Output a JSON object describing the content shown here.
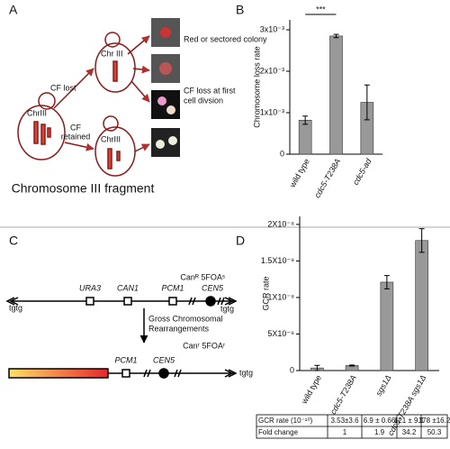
{
  "panel_labels": [
    "A",
    "B",
    "C",
    "D"
  ],
  "panel_a": {
    "chrIII_left": "ChrIII",
    "cf_lost": "CF lost",
    "cf_retained": [
      "CF",
      "retained"
    ],
    "chrIII_top": "Chr III",
    "chrIII_bottom": "ChrIII",
    "red_colony": "Red or sectored colony",
    "cf_loss_first": [
      "CF loss at first",
      "cell divsion"
    ],
    "fragment": "Chromosome III fragment"
  },
  "panel_c": {
    "tgtg_left": "tgtg",
    "ura3": "URA3",
    "can1": "CAN1",
    "pcm1": "PCM1",
    "cen5": "CEN5",
    "tgtg_right": "tgtg",
    "phenotype_top": "Canᴿ 5FOAˢ",
    "gcr": [
      "Gross Chromosomal",
      "Rearrangements"
    ],
    "phenotype_bottom": "Canʳ 5FOAʳ",
    "pcm1_b": "PCM1",
    "cen5_b": "CEN5",
    "tgtg_b": "tgtg"
  },
  "chart_data": [
    {
      "type": "bar",
      "y_label": "Chromosome loss rate",
      "categories": [
        "wild type",
        "cdc5-T238A",
        "cdc5-ad"
      ],
      "values": [
        0.00082,
        0.00285,
        0.00125
      ],
      "errors": [
        0.0001,
        4e-05,
        0.00042
      ],
      "color": "#999999",
      "ylim": [
        0,
        0.00324
      ],
      "yticks": [
        0,
        {
          "value": 0.001,
          "label": "1x10⁻³"
        },
        {
          "value": 0.002,
          "label": "2x10⁻³"
        },
        {
          "value": 0.003,
          "label": "3x10⁻³"
        }
      ],
      "significance": "***"
    },
    {
      "type": "bar",
      "y_label": "GCR rate",
      "categories": [
        "wild type",
        "cdc5-T238A",
        "sgs1Δ",
        "cdc5-T238A sgs1Δ"
      ],
      "values": [
        3.53e-10,
        6.9e-10,
        1.21e-08,
        1.78e-08
      ],
      "errors": [
        3.6e-10,
        6.6e-11,
        9.1e-10,
        1.62e-09
      ],
      "color": "#999999",
      "ylim": [
        0,
        2.11e-08
      ],
      "yticks": [
        0,
        {
          "value": 5e-09,
          "label": "5X10⁻⁹"
        },
        {
          "value": 1e-08,
          "label": "1X10⁻⁸"
        },
        {
          "value": 1.5e-08,
          "label": "1.5X10⁻⁸"
        },
        {
          "value": 2e-08,
          "label": "2X10⁻⁸"
        }
      ]
    }
  ],
  "table": {
    "rows": [
      [
        "GCR rate (10⁻¹⁰)",
        "3.53±3.6",
        "6.9 ± 0.66",
        "121 ± 9.1",
        "178 ±16.2"
      ],
      [
        "Fold change",
        "1",
        "1.9",
        "34.2",
        "50.3"
      ]
    ]
  }
}
